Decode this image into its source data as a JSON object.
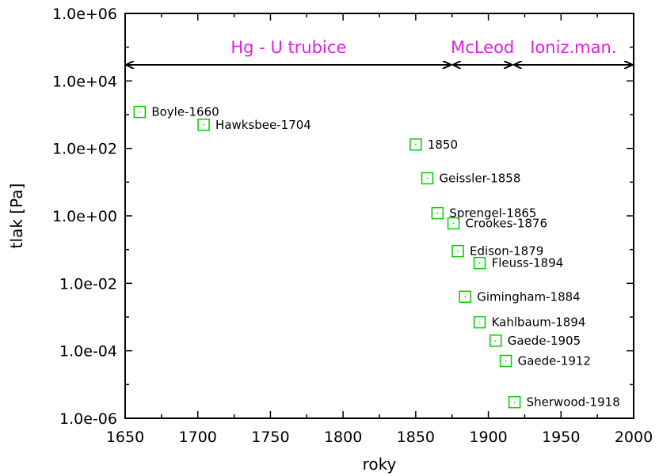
{
  "chart_data": {
    "type": "scatter",
    "xlabel": "roky",
    "ylabel": "tlak [Pa]",
    "xlim": [
      1650,
      2000
    ],
    "ylim": [
      1e-06,
      1000000.0
    ],
    "yscale": "log",
    "grid": false,
    "x_ticks": [
      1650,
      1700,
      1750,
      1800,
      1850,
      1900,
      1950,
      2000
    ],
    "x_tick_labels": [
      "1650",
      "1700",
      "1750",
      "1800",
      "1850",
      "1900",
      "1950",
      "2000"
    ],
    "y_ticks": [
      1e-06,
      0.0001,
      0.01,
      1,
      100,
      10000,
      1000000
    ],
    "y_tick_labels": [
      "1.0e-06",
      "1.0e-04",
      "1.0e-02",
      "1.0e+00",
      "1.0e+02",
      "1.0e+04",
      "1.0e+06"
    ],
    "marker_color": "#00cc00",
    "range_color": "#e020e0",
    "points": [
      {
        "label": "Boyle-1660",
        "x": 1660,
        "y": 1200
      },
      {
        "label": "Hawksbee-1704",
        "x": 1704,
        "y": 500
      },
      {
        "label": "1850",
        "x": 1850,
        "y": 130
      },
      {
        "label": "Geissler-1858",
        "x": 1858,
        "y": 13
      },
      {
        "label": "Sprengel-1865",
        "x": 1865,
        "y": 1.2
      },
      {
        "label": "Crookes-1876",
        "x": 1876,
        "y": 0.6
      },
      {
        "label": "Edison-1879",
        "x": 1879,
        "y": 0.09
      },
      {
        "label": "Fleuss-1894",
        "x": 1894,
        "y": 0.04
      },
      {
        "label": "Gimingham-1884",
        "x": 1884,
        "y": 0.004
      },
      {
        "label": "Kahlbaum-1894",
        "x": 1894,
        "y": 0.0007
      },
      {
        "label": "Gaede-1905",
        "x": 1905,
        "y": 0.0002
      },
      {
        "label": "Gaede-1912",
        "x": 1912,
        "y": 5e-05
      },
      {
        "label": "Sherwood-1918",
        "x": 1918,
        "y": 3e-06
      }
    ],
    "range_y": 30000,
    "ranges": [
      {
        "label": "Hg - U trubice",
        "x_start": 1650,
        "x_end": 1875
      },
      {
        "label": "McLeod",
        "x_start": 1875,
        "x_end": 1917
      },
      {
        "label": "Ioniz.man.",
        "x_start": 1917,
        "x_end": 2000
      }
    ]
  }
}
